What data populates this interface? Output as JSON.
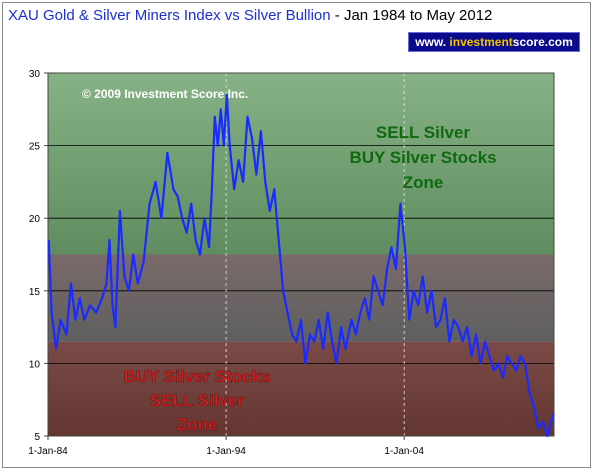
{
  "title": {
    "main": "XAU Gold & Silver Miners Index vs Silver Bullion",
    "range": "- Jan 1984 to May 2012"
  },
  "badge": {
    "pre": "www. ",
    "highlight": "investment",
    "post": "score.com"
  },
  "colors": {
    "line": "#1a2bff",
    "top_zone": "#6f9c6f",
    "mid_zone": "#6f6f6f",
    "bottom_zone": "#6f3b37",
    "sell_text": "#0f6a0f",
    "buy_text": "#e01b1b",
    "badge_bg": "#0a0a8c",
    "badge_highlight": "#f2c200",
    "title": "#1c2fd0"
  },
  "chart_data": {
    "type": "line",
    "title": "XAU Gold & Silver Miners Index vs Silver Bullion",
    "subtitle": "- Jan 1984 to May 2012",
    "xlabel": "",
    "ylabel": "",
    "ylim": [
      5,
      30
    ],
    "yticks": [
      5,
      10,
      15,
      20,
      25,
      30
    ],
    "xlim": [
      "1984-01-01",
      "2012-05-31"
    ],
    "xticks": [
      "1-Jan-84",
      "1-Jan-94",
      "1-Jan-04"
    ],
    "xtick_dates": [
      "1984-01-01",
      "1994-01-01",
      "2004-01-01"
    ],
    "grid": "horizontal",
    "copyright": "© 2009 Investment Score Inc.",
    "zones": [
      {
        "label_lines": [
          "SELL Silver",
          "BUY Silver Stocks",
          "Zone"
        ],
        "from": 17.5,
        "to": 30
      },
      {
        "label_lines": [],
        "from": 11.5,
        "to": 17.5
      },
      {
        "label_lines": [
          "BUY Silver Stocks",
          "SELL Silver",
          "Zone"
        ],
        "from": 5,
        "to": 11.5
      }
    ],
    "series": [
      {
        "name": "",
        "x": [
          "1984-01",
          "1984-03",
          "1984-06",
          "1984-09",
          "1985-01",
          "1985-04",
          "1985-07",
          "1985-10",
          "1986-01",
          "1986-05",
          "1986-09",
          "1987-01",
          "1987-04",
          "1987-06",
          "1987-08",
          "1987-10",
          "1988-01",
          "1988-04",
          "1988-07",
          "1988-10",
          "1989-01",
          "1989-05",
          "1989-09",
          "1990-01",
          "1990-05",
          "1990-09",
          "1991-01",
          "1991-04",
          "1991-07",
          "1991-10",
          "1992-01",
          "1992-04",
          "1992-07",
          "1992-10",
          "1993-01",
          "1993-03",
          "1993-05",
          "1993-07",
          "1993-09",
          "1993-11",
          "1994-01",
          "1994-03",
          "1994-06",
          "1994-09",
          "1994-12",
          "1995-03",
          "1995-06",
          "1995-09",
          "1995-12",
          "1996-03",
          "1996-06",
          "1996-09",
          "1996-12",
          "1997-03",
          "1997-06",
          "1997-09",
          "1997-12",
          "1998-03",
          "1998-06",
          "1998-09",
          "1998-12",
          "1999-03",
          "1999-06",
          "1999-09",
          "1999-12",
          "2000-03",
          "2000-06",
          "2000-09",
          "2001-01",
          "2001-04",
          "2001-07",
          "2001-10",
          "2002-01",
          "2002-04",
          "2002-07",
          "2002-10",
          "2003-01",
          "2003-04",
          "2003-07",
          "2003-10",
          "2004-01",
          "2004-04",
          "2004-07",
          "2004-10",
          "2005-01",
          "2005-04",
          "2005-07",
          "2005-10",
          "2006-01",
          "2006-04",
          "2006-07",
          "2006-10",
          "2007-01",
          "2007-04",
          "2007-07",
          "2007-10",
          "2008-01",
          "2008-04",
          "2008-07",
          "2008-10",
          "2009-01",
          "2009-04",
          "2009-07",
          "2009-10",
          "2010-01",
          "2010-04",
          "2010-07",
          "2010-10",
          "2011-01",
          "2011-04",
          "2011-07",
          "2011-10",
          "2012-01",
          "2012-05"
        ],
        "values": [
          18.5,
          13.5,
          11.0,
          13.0,
          12.0,
          15.5,
          13.0,
          14.5,
          13.0,
          14.0,
          13.5,
          14.5,
          15.5,
          18.5,
          14.0,
          12.5,
          20.5,
          16.0,
          15.0,
          17.5,
          15.5,
          17.0,
          21.0,
          22.5,
          20.0,
          24.5,
          22.0,
          21.5,
          20.0,
          19.0,
          21.0,
          18.5,
          17.5,
          20.0,
          18.0,
          22.0,
          27.0,
          25.0,
          27.5,
          25.0,
          28.5,
          25.0,
          22.0,
          24.0,
          22.5,
          27.0,
          25.5,
          23.0,
          26.0,
          22.5,
          20.5,
          22.0,
          18.5,
          15.0,
          13.5,
          12.0,
          11.5,
          13.0,
          10.0,
          12.0,
          11.5,
          13.0,
          11.0,
          13.5,
          11.5,
          10.0,
          12.5,
          11.0,
          13.0,
          12.0,
          13.5,
          14.5,
          13.0,
          16.0,
          15.0,
          14.0,
          16.5,
          18.0,
          16.5,
          21.0,
          18.0,
          13.0,
          15.0,
          14.0,
          16.0,
          13.5,
          15.0,
          12.5,
          13.0,
          14.5,
          11.5,
          13.0,
          12.5,
          11.5,
          12.5,
          10.5,
          12.0,
          10.0,
          11.5,
          10.5,
          9.5,
          10.0,
          9.0,
          10.5,
          10.0,
          9.5,
          10.5,
          10.0,
          8.0,
          7.0,
          5.5,
          6.0,
          5.0,
          6.5
        ]
      }
    ]
  }
}
